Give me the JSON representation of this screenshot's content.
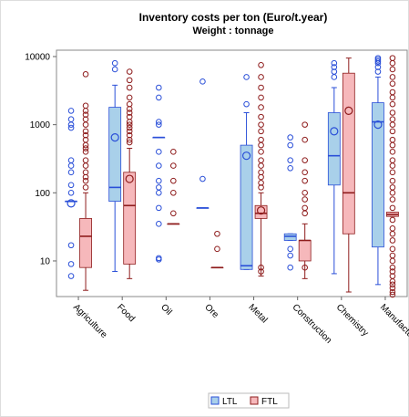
{
  "chart_data": {
    "type": "box",
    "title": "Inventory costs per ton (Euro/t.year)",
    "subtitle": "Weight : tonnage",
    "categories": [
      "Agriculture",
      "Food",
      "Oil",
      "Ore",
      "Metal",
      "Construction",
      "Chemistry",
      "Manufacturing"
    ],
    "ylim": [
      3,
      12400
    ],
    "yticks": [
      10,
      100,
      1000,
      10000
    ],
    "log_y": true,
    "legend": "bottom",
    "series": [
      {
        "name": "LTL",
        "color": "#a9d0ea",
        "stroke": "#2a4fd8",
        "boxes": [
          {
            "min": 75,
            "q1": 75,
            "median": 75,
            "q3": 75,
            "max": 75,
            "mean": 70,
            "outliers": [
              1600,
              1200,
              1000,
              900,
              300,
              250,
              200,
              130,
              100,
              17,
              9,
              6
            ]
          },
          {
            "min": 7,
            "q1": 75,
            "median": 120,
            "q3": 1800,
            "max": 3800,
            "mean": 650,
            "outliers": [
              8000,
              6500
            ]
          },
          {
            "min": 650,
            "q1": 650,
            "median": 650,
            "q3": 650,
            "max": 650,
            "mean": null,
            "outliers": [
              3500,
              2500,
              1100,
              1000,
              400,
              250,
              150,
              120,
              100,
              60,
              35,
              11,
              10.5
            ]
          },
          {
            "min": 60,
            "q1": 60,
            "median": 60,
            "q3": 60,
            "max": 60,
            "mean": null,
            "outliers": [
              4300,
              160
            ]
          },
          {
            "min": 7.5,
            "q1": 7.5,
            "median": 8.5,
            "q3": 500,
            "max": 1500,
            "mean": 350,
            "outliers": [
              5000,
              2000
            ]
          },
          {
            "min": 20,
            "q1": 20,
            "median": 23,
            "q3": 25,
            "max": 25,
            "mean": null,
            "outliers": [
              650,
              500,
              300,
              230,
              15,
              12,
              8
            ]
          },
          {
            "min": 6.5,
            "q1": 130,
            "median": 350,
            "q3": 1500,
            "max": 3500,
            "mean": 800,
            "outliers": [
              8000,
              7000,
              6000,
              5000
            ]
          },
          {
            "min": 4.5,
            "q1": 16,
            "median": 1100,
            "q3": 2100,
            "max": 5000,
            "mean": 1000,
            "outliers": [
              9500,
              9000,
              8500,
              8000,
              7000,
              6000
            ]
          }
        ]
      },
      {
        "name": "FTL",
        "color": "#f6b8bb",
        "stroke": "#8e1c1c",
        "boxes": [
          {
            "min": 3.7,
            "q1": 8,
            "median": 23,
            "q3": 42,
            "max": 100,
            "mean": null,
            "outliers": [
              5500,
              1900,
              1600,
              1400,
              1200,
              1000,
              800,
              700,
              600,
              500,
              450,
              400,
              300,
              250,
              200,
              170,
              150,
              120
            ]
          },
          {
            "min": 5.5,
            "q1": 9,
            "median": 65,
            "q3": 200,
            "max": 450,
            "mean": 160,
            "outliers": [
              6000,
              4500,
              3500,
              2500,
              2000,
              1700,
              1500,
              1300,
              1100,
              1000,
              900,
              800,
              700,
              600,
              550
            ]
          },
          {
            "min": 35,
            "q1": 35,
            "median": 35,
            "q3": 35,
            "max": 35,
            "mean": null,
            "outliers": [
              400,
              250,
              150,
              100,
              50
            ]
          },
          {
            "min": 8,
            "q1": 8,
            "median": 8,
            "q3": 8,
            "max": 8,
            "mean": null,
            "outliers": [
              25,
              15
            ]
          },
          {
            "min": 6,
            "q1": 42,
            "median": 50,
            "q3": 65,
            "max": 100,
            "mean": 55,
            "outliers": [
              7500,
              5000,
              3500,
              2500,
              1800,
              1300,
              1000,
              800,
              600,
              500,
              400,
              300,
              250,
              200,
              170,
              140,
              120,
              8,
              7
            ]
          },
          {
            "min": 5.5,
            "q1": 10,
            "median": 20,
            "q3": 20,
            "max": 35,
            "mean": null,
            "outliers": [
              1000,
              600,
              300,
              200,
              150,
              100,
              80,
              60,
              50,
              8
            ]
          },
          {
            "min": 3.5,
            "q1": 25,
            "median": 100,
            "q3": 5700,
            "max": 9500,
            "mean": 1600,
            "outliers": []
          },
          {
            "min": 45,
            "q1": 45,
            "median": 48,
            "q3": 52,
            "max": 52,
            "mean": null,
            "outliers": [
              9500,
              8000,
              6500,
              5000,
              4000,
              3000,
              2500,
              2000,
              1500,
              1200,
              1000,
              800,
              600,
              500,
              400,
              300,
              250,
              200,
              150,
              120,
              100,
              80,
              60,
              40,
              30,
              25,
              20,
              15,
              12,
              10,
              8,
              7,
              6,
              5,
              4.5,
              4,
              3.5,
              3.2
            ]
          }
        ]
      }
    ]
  }
}
